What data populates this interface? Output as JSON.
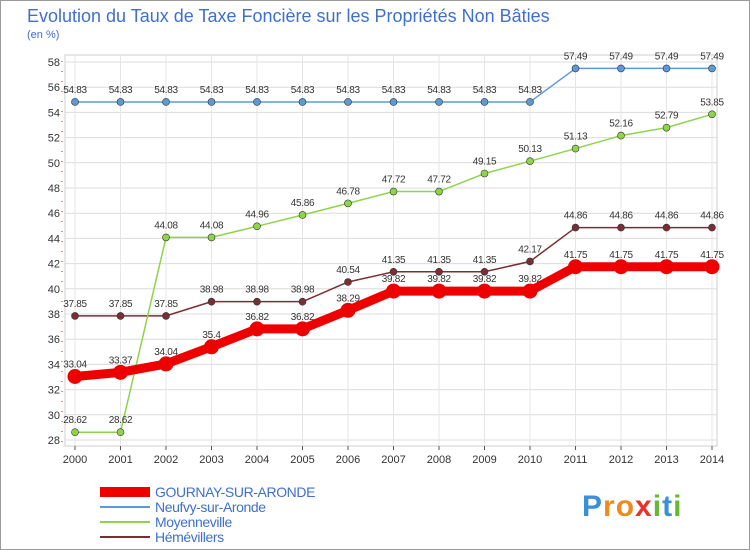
{
  "chart_data": {
    "type": "line",
    "title": "Evolution du Taux de Taxe Foncière sur les Propriétés Non Bâties",
    "ylabel": "(en %)",
    "xlabel": "",
    "categories": [
      "2000",
      "2001",
      "2002",
      "2003",
      "2004",
      "2005",
      "2006",
      "2007",
      "2008",
      "2009",
      "2010",
      "2011",
      "2012",
      "2013",
      "2014"
    ],
    "ylim": [
      28,
      58
    ],
    "yticks": [
      28,
      30,
      32,
      34,
      36,
      38,
      40,
      42,
      44,
      46,
      48,
      50,
      52,
      54,
      56,
      58
    ],
    "grid": true,
    "legend_position": "bottom-left",
    "series": [
      {
        "name": "GOURNAY-SUR-ARONDE",
        "color": "#ee0000",
        "values": [
          33.04,
          33.37,
          34.04,
          35.4,
          36.82,
          36.82,
          38.29,
          39.82,
          39.82,
          39.82,
          39.82,
          41.75,
          41.75,
          41.75,
          41.75
        ],
        "labels": [
          "33.04",
          "33.37",
          "34.04",
          "35.4",
          "36.82",
          "36.82",
          "38.29",
          "39.82",
          "39.82",
          "39.82",
          "39.82",
          "41.75",
          "41.75",
          "41.75",
          "41.75"
        ]
      },
      {
        "name": "Neufvy-sur-Aronde",
        "color": "#5b9bd5",
        "values": [
          54.83,
          54.83,
          54.83,
          54.83,
          54.83,
          54.83,
          54.83,
          54.83,
          54.83,
          54.83,
          54.83,
          57.49,
          57.49,
          57.49,
          57.49
        ],
        "labels": [
          "54.83",
          "54.83",
          "54.83",
          "54.83",
          "54.83",
          "54.83",
          "54.83",
          "54.83",
          "54.83",
          "54.83",
          "54.83",
          "57.49",
          "57.49",
          "57.49",
          "57.49"
        ]
      },
      {
        "name": "Moyenneville",
        "color": "#8ed44a",
        "values": [
          28.62,
          28.62,
          44.08,
          44.08,
          44.96,
          45.86,
          46.78,
          47.72,
          47.72,
          49.15,
          50.13,
          51.13,
          52.16,
          52.79,
          53.85
        ],
        "labels": [
          "28.62",
          "28.62",
          "44.08",
          "44.08",
          "44.96",
          "45.86",
          "46.78",
          "47.72",
          "47.72",
          "49.15",
          "50.13",
          "51.13",
          "52.16",
          "52.79",
          "53.85"
        ]
      },
      {
        "name": "Hémévillers",
        "color": "#7a2e34",
        "values": [
          37.85,
          37.85,
          37.85,
          38.98,
          38.98,
          38.98,
          40.54,
          41.35,
          41.35,
          41.35,
          42.17,
          44.86,
          44.86,
          44.86,
          44.86
        ],
        "labels": [
          "37.85",
          "37.85",
          "37.85",
          "38.98",
          "38.98",
          "38.98",
          "40.54",
          "41.35",
          "41.35",
          "41.35",
          "42.17",
          "44.86",
          "44.86",
          "44.86",
          "44.86"
        ]
      }
    ]
  },
  "logo": {
    "text": "Proxiti",
    "letters": [
      "P",
      "r",
      "o",
      "x",
      "i",
      "t",
      "i"
    ],
    "colors": [
      "#3a8fd6",
      "#f08a1e",
      "#f08a1e",
      "#e8322a",
      "#66b832",
      "#3a8fd6",
      "#66b832"
    ]
  }
}
